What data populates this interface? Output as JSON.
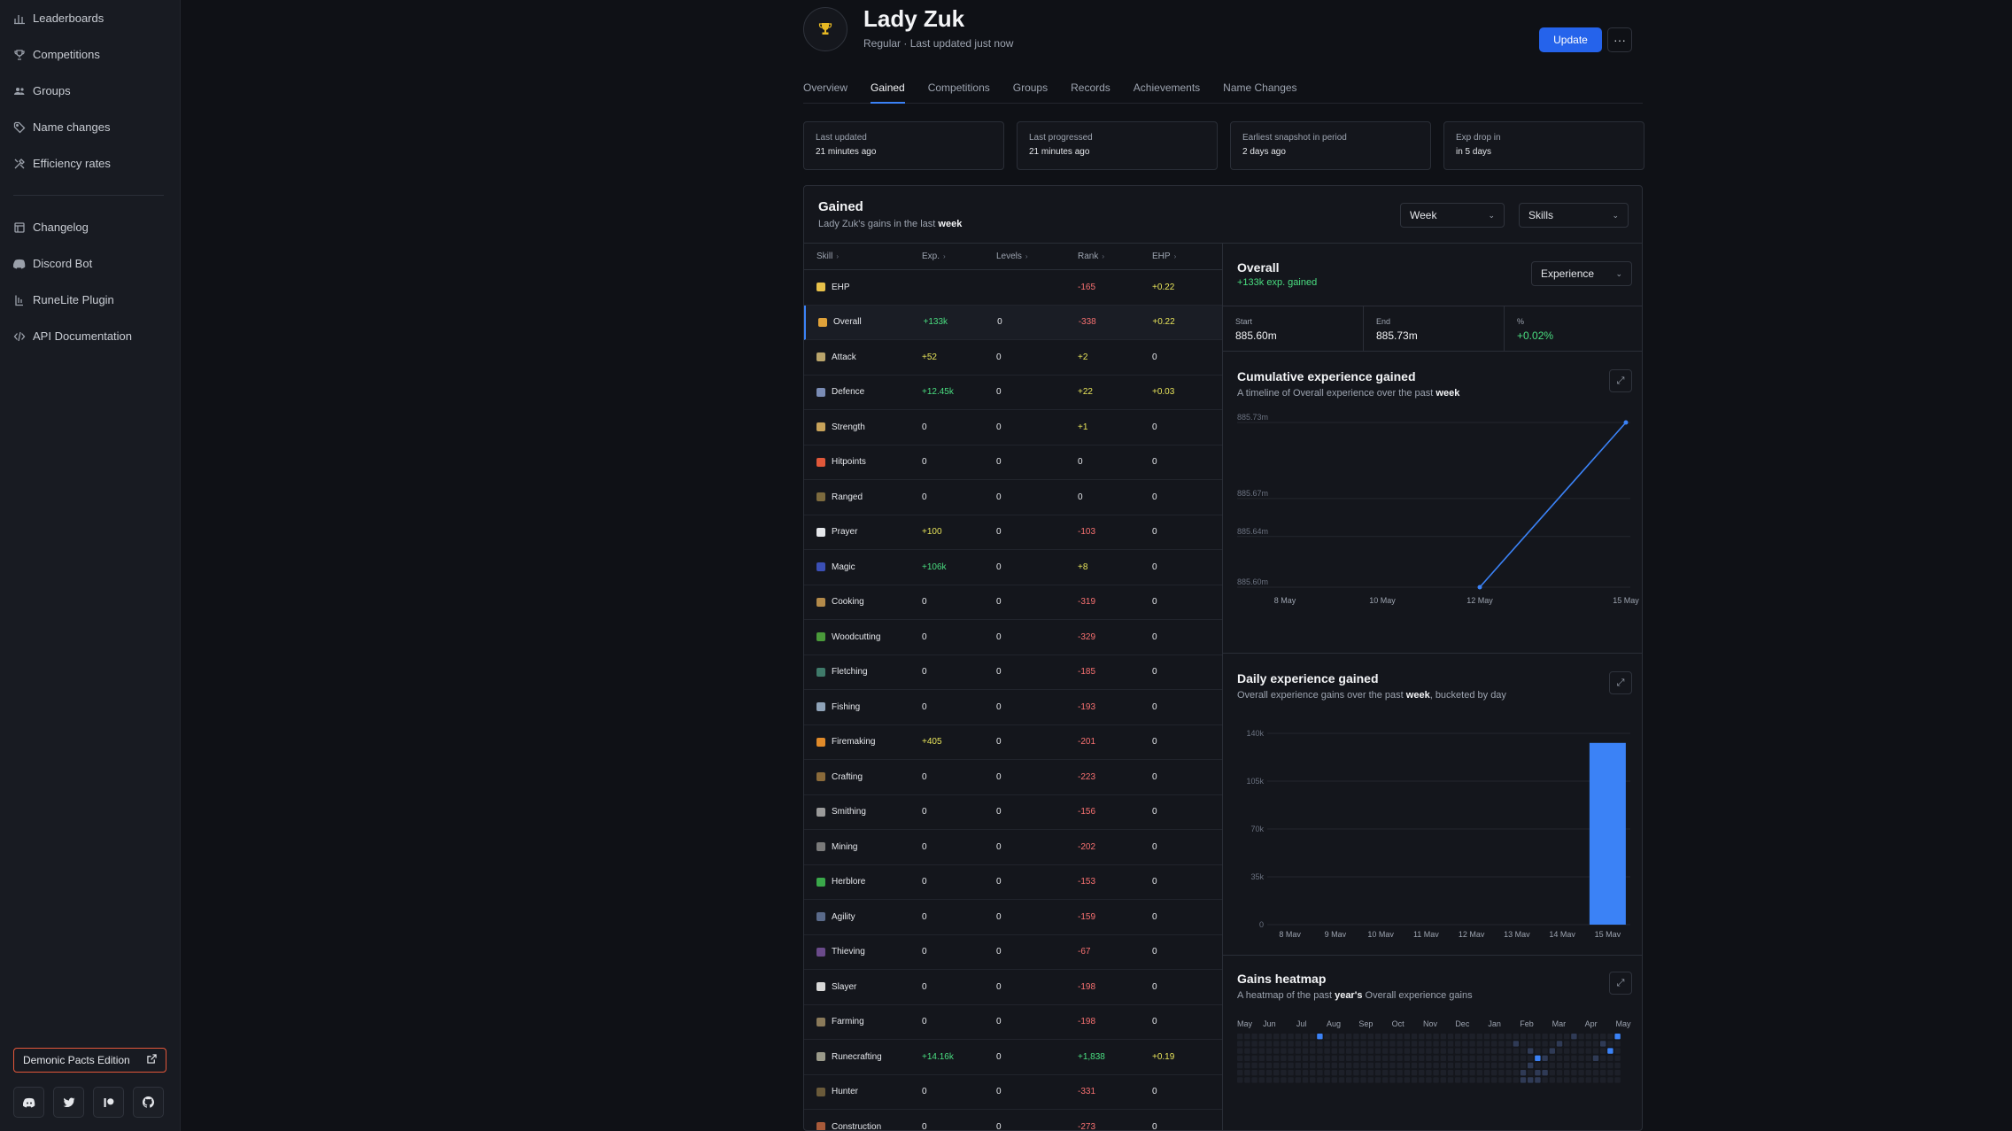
{
  "sidebar": {
    "items": [
      {
        "label": "Leaderboards",
        "icon": "bar-chart-icon"
      },
      {
        "label": "Competitions",
        "icon": "trophy-icon"
      },
      {
        "label": "Groups",
        "icon": "users-icon"
      },
      {
        "label": "Name changes",
        "icon": "tag-icon"
      },
      {
        "label": "Efficiency rates",
        "icon": "tools-icon"
      }
    ],
    "items2": [
      {
        "label": "Changelog",
        "icon": "changelog-icon"
      },
      {
        "label": "Discord Bot",
        "icon": "discord-icon"
      },
      {
        "label": "RuneLite Plugin",
        "icon": "runelite-icon"
      },
      {
        "label": "API Documentation",
        "icon": "code-icon"
      }
    ],
    "edition_label": "Demonic Pacts Edition"
  },
  "player": {
    "name": "Lady Zuk",
    "subtitle": "Regular · Last updated just now",
    "update_label": "Update",
    "more_label": "···"
  },
  "tabs": [
    "Overview",
    "Gained",
    "Competitions",
    "Groups",
    "Records",
    "Achievements",
    "Name Changes"
  ],
  "active_tab": "Gained",
  "stats": [
    {
      "label": "Last updated",
      "value": "21 minutes ago"
    },
    {
      "label": "Last progressed",
      "value": "21 minutes ago"
    },
    {
      "label": "Earliest snapshot in period",
      "value": "2 days ago"
    },
    {
      "label": "Exp drop in",
      "value": "in 5 days"
    }
  ],
  "gained": {
    "title": "Gained",
    "subtitle_prefix": "Lady Zuk's gains in the last ",
    "subtitle_period": "week",
    "period_select": "Week",
    "metric_select": "Skills",
    "columns": [
      "Skill",
      "Exp.",
      "Levels",
      "Rank",
      "EHP"
    ],
    "rows": [
      {
        "skill": "EHP",
        "exp": "",
        "levels": "",
        "rank": "-165",
        "ehp": "+0.22",
        "color": "#e7c14a"
      },
      {
        "skill": "Overall",
        "exp": "+133k",
        "levels": "0",
        "rank": "-338",
        "ehp": "+0.22",
        "color": "#e0a23a"
      },
      {
        "skill": "Attack",
        "exp": "+52",
        "levels": "0",
        "rank": "+2",
        "ehp": "0",
        "color": "#b9a46b"
      },
      {
        "skill": "Defence",
        "exp": "+12.45k",
        "levels": "0",
        "rank": "+22",
        "ehp": "+0.03",
        "color": "#7a8cb5"
      },
      {
        "skill": "Strength",
        "exp": "0",
        "levels": "0",
        "rank": "+1",
        "ehp": "0",
        "color": "#c7a25a"
      },
      {
        "skill": "Hitpoints",
        "exp": "0",
        "levels": "0",
        "rank": "0",
        "ehp": "0",
        "color": "#e0583a"
      },
      {
        "skill": "Ranged",
        "exp": "0",
        "levels": "0",
        "rank": "0",
        "ehp": "0",
        "color": "#7c6a3e"
      },
      {
        "skill": "Prayer",
        "exp": "+100",
        "levels": "0",
        "rank": "-103",
        "ehp": "0",
        "color": "#e5e7eb"
      },
      {
        "skill": "Magic",
        "exp": "+106k",
        "levels": "0",
        "rank": "+8",
        "ehp": "0",
        "color": "#3b4fb5"
      },
      {
        "skill": "Cooking",
        "exp": "0",
        "levels": "0",
        "rank": "-319",
        "ehp": "0",
        "color": "#b38a4a"
      },
      {
        "skill": "Woodcutting",
        "exp": "0",
        "levels": "0",
        "rank": "-329",
        "ehp": "0",
        "color": "#4a9a3a"
      },
      {
        "skill": "Fletching",
        "exp": "0",
        "levels": "0",
        "rank": "-185",
        "ehp": "0",
        "color": "#3f7a6a"
      },
      {
        "skill": "Fishing",
        "exp": "0",
        "levels": "0",
        "rank": "-193",
        "ehp": "0",
        "color": "#8fa3b8"
      },
      {
        "skill": "Firemaking",
        "exp": "+405",
        "levels": "0",
        "rank": "-201",
        "ehp": "0",
        "color": "#e08a2a"
      },
      {
        "skill": "Crafting",
        "exp": "0",
        "levels": "0",
        "rank": "-223",
        "ehp": "0",
        "color": "#8a6a3a"
      },
      {
        "skill": "Smithing",
        "exp": "0",
        "levels": "0",
        "rank": "-156",
        "ehp": "0",
        "color": "#9a9a9a"
      },
      {
        "skill": "Mining",
        "exp": "0",
        "levels": "0",
        "rank": "-202",
        "ehp": "0",
        "color": "#7a7a7a"
      },
      {
        "skill": "Herblore",
        "exp": "0",
        "levels": "0",
        "rank": "-153",
        "ehp": "0",
        "color": "#3aa84a"
      },
      {
        "skill": "Agility",
        "exp": "0",
        "levels": "0",
        "rank": "-159",
        "ehp": "0",
        "color": "#5a6a8a"
      },
      {
        "skill": "Thieving",
        "exp": "0",
        "levels": "0",
        "rank": "-67",
        "ehp": "0",
        "color": "#6a4a8a"
      },
      {
        "skill": "Slayer",
        "exp": "0",
        "levels": "0",
        "rank": "-198",
        "ehp": "0",
        "color": "#d8d8d8"
      },
      {
        "skill": "Farming",
        "exp": "0",
        "levels": "0",
        "rank": "-198",
        "ehp": "0",
        "color": "#8a7a5a"
      },
      {
        "skill": "Runecrafting",
        "exp": "+14.16k",
        "levels": "0",
        "rank": "+1,838",
        "ehp": "+0.19",
        "color": "#9a9a8a"
      },
      {
        "skill": "Hunter",
        "exp": "0",
        "levels": "0",
        "rank": "-331",
        "ehp": "0",
        "color": "#6a5a3a"
      },
      {
        "skill": "Construction",
        "exp": "0",
        "levels": "0",
        "rank": "-273",
        "ehp": "0",
        "color": "#a85a3a"
      }
    ]
  },
  "overall": {
    "title": "Overall",
    "gained": "+133k exp. gained",
    "select": "Experience",
    "start_label": "Start",
    "start_value": "885.60m",
    "end_label": "End",
    "end_value": "885.73m",
    "pct_label": "%",
    "pct_value": "+0.02%"
  },
  "cumulative": {
    "title": "Cumulative experience gained",
    "subtitle_prefix": "A timeline of Overall experience over the past ",
    "subtitle_period": "week"
  },
  "daily": {
    "title": "Daily experience gained",
    "subtitle_prefix": "Overall experience gains over the past ",
    "subtitle_period": "week",
    "subtitle_suffix": ", bucketed by day"
  },
  "heatmap": {
    "title": "Gains heatmap",
    "subtitle_prefix": "A heatmap of the past ",
    "subtitle_period": "year's",
    "subtitle_suffix": " Overall experience gains",
    "months": [
      "May",
      "Jun",
      "Jul",
      "Aug",
      "Sep",
      "Oct",
      "Nov",
      "Dec",
      "Jan",
      "Feb",
      "Mar",
      "Apr",
      "May"
    ]
  },
  "chart_data": [
    {
      "type": "line",
      "x": [
        "8 May",
        "10 May",
        "12 May",
        "15 May"
      ],
      "y_ticks": [
        "885.73m",
        "885.67m",
        "885.64m",
        "885.60m"
      ],
      "points": [
        {
          "x": "12 May",
          "y": 885.6
        },
        {
          "x": "15 May",
          "y": 885.73
        }
      ],
      "color": "#3b82f6"
    },
    {
      "type": "bar",
      "categories": [
        "8 May",
        "9 May",
        "10 May",
        "11 May",
        "12 May",
        "13 May",
        "14 May",
        "15 May"
      ],
      "values": [
        0,
        0,
        0,
        0,
        0,
        0,
        0,
        133000
      ],
      "y_ticks": [
        "140k",
        "105k",
        "70k",
        "35k",
        "0"
      ],
      "ylim": [
        0,
        140000
      ],
      "color": "#3b82f6"
    }
  ]
}
